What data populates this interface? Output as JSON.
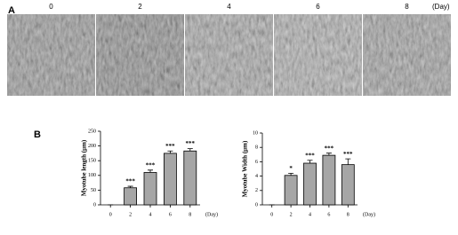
{
  "panel_a": {
    "label": "A",
    "days": [
      "0",
      "2",
      "4",
      "6",
      "8"
    ],
    "unit": "(Day)"
  },
  "panel_b": {
    "label": "B"
  },
  "chart_data": [
    {
      "type": "bar",
      "y_label": "Myotube length (μm)",
      "x_unit": "(Day)",
      "categories": [
        "0",
        "2",
        "4",
        "6",
        "8"
      ],
      "values": [
        0,
        58,
        110,
        175,
        183
      ],
      "errors": [
        0,
        5,
        8,
        8,
        8
      ],
      "annotations": [
        null,
        "***",
        "***",
        "***",
        "***"
      ],
      "color": "#a6a6a6",
      "ylim": [
        0,
        250
      ],
      "yticks": [
        0,
        50,
        100,
        150,
        200,
        250
      ]
    },
    {
      "type": "bar",
      "y_label": "Myotube Width (μm)",
      "x_unit": "(Day)",
      "categories": [
        "0",
        "2",
        "4",
        "6",
        "8"
      ],
      "values": [
        0,
        4.1,
        5.8,
        6.9,
        5.6
      ],
      "errors": [
        0,
        0.3,
        0.4,
        0.3,
        0.8
      ],
      "annotations": [
        null,
        "*",
        "***",
        "***",
        "***"
      ],
      "color": "#a6a6a6",
      "ylim": [
        0,
        10
      ],
      "yticks": [
        0,
        2,
        4,
        6,
        8,
        10
      ]
    }
  ]
}
